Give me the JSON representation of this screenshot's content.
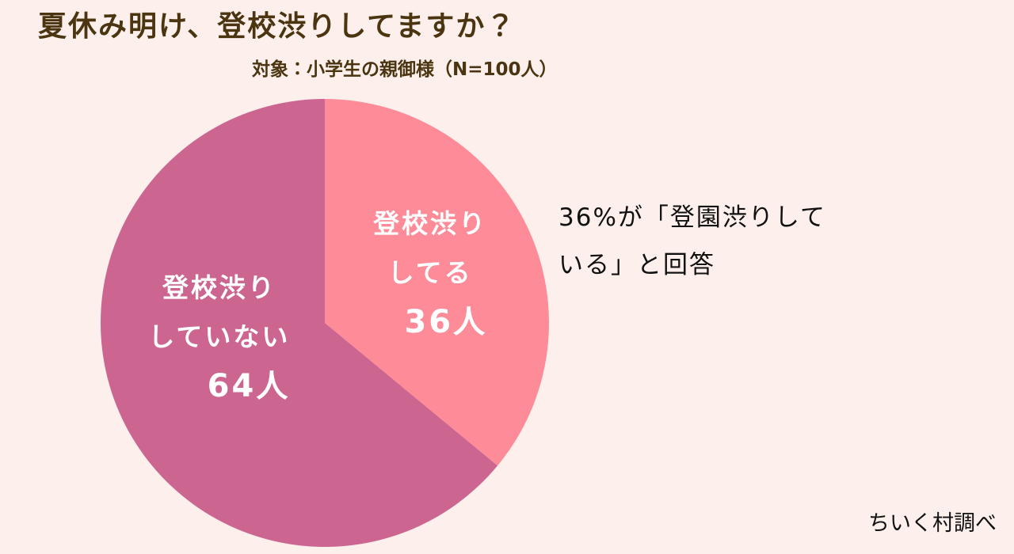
{
  "chart_data": {
    "type": "pie",
    "title": "夏休み明け、登校渋りしてますか？",
    "subtitle": "対象：小学生の親御様（N=100人）",
    "categories": [
      "登校渋り\nしてる",
      "登校渋り\nしていない"
    ],
    "values": [
      36,
      64
    ],
    "value_labels": [
      "36人",
      "64人"
    ],
    "colors": [
      "#fd8c98",
      "#cd6591"
    ],
    "annotation": "36%が「登園渋りして\nいる」と回答",
    "source": "ちいく村調べ"
  }
}
